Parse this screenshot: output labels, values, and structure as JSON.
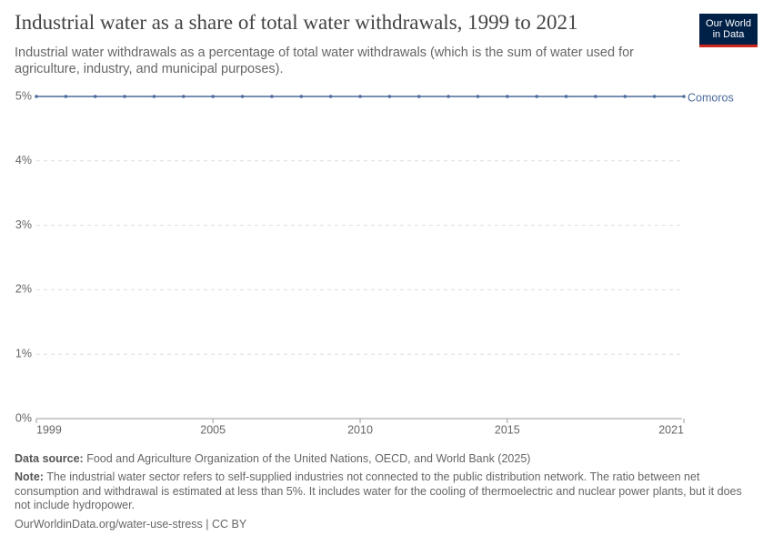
{
  "chart_data": {
    "type": "line",
    "title": "Industrial water as a share of total water withdrawals, 1999 to 2021",
    "subtitle": "Industrial water withdrawals as a percentage of total water withdrawals (which is the sum of water used for agriculture, industry, and municipal purposes).",
    "logo": [
      "Our World",
      "in Data"
    ],
    "x": [
      1999,
      2000,
      2001,
      2002,
      2003,
      2004,
      2005,
      2006,
      2007,
      2008,
      2009,
      2010,
      2011,
      2012,
      2013,
      2014,
      2015,
      2016,
      2017,
      2018,
      2019,
      2020,
      2021
    ],
    "series": [
      {
        "name": "Comoros",
        "color": "#4c6a9c",
        "values": [
          5,
          5,
          5,
          5,
          5,
          5,
          5,
          5,
          5,
          5,
          5,
          5,
          5,
          5,
          5,
          5,
          5,
          5,
          5,
          5,
          5,
          5,
          5
        ]
      }
    ],
    "xlim": [
      1999,
      2021
    ],
    "xticks": [
      1999,
      2005,
      2010,
      2015,
      2021
    ],
    "ylim": [
      0,
      5
    ],
    "yticks": [
      {
        "value": 0,
        "label": "0%"
      },
      {
        "value": 1,
        "label": "1%"
      },
      {
        "value": 2,
        "label": "2%"
      },
      {
        "value": 3,
        "label": "3%"
      },
      {
        "value": 4,
        "label": "4%"
      },
      {
        "value": 5,
        "label": "5%"
      }
    ],
    "grid": true,
    "source_label": "Data source:",
    "source": "Food and Agriculture Organization of the United Nations, OECD, and World Bank (2025)",
    "note_label": "Note:",
    "note": "The industrial water sector refers to self-supplied industries not connected to the public distribution network. The ratio between net consumption and withdrawal is estimated at less than 5%. It includes water for the cooling of thermoelectric and nuclear power plants, but it does not include hydropower.",
    "url": "OurWorldinData.org/water-use-stress | CC BY"
  }
}
